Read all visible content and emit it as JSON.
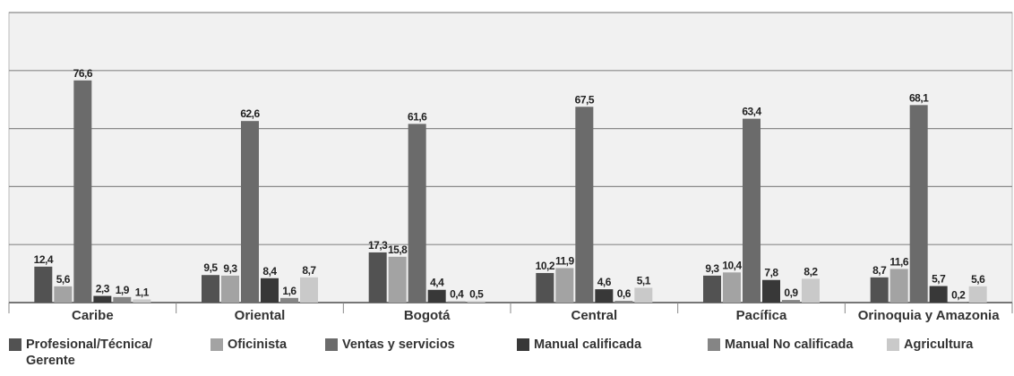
{
  "chart_data": {
    "type": "bar",
    "categories": [
      "Caribe",
      "Oriental",
      "Bogotá",
      "Central",
      "Pacífica",
      "Orinoquia y Amazonia"
    ],
    "ylim": [
      0,
      100
    ],
    "yticks": [
      0,
      20,
      40,
      60,
      80,
      100
    ],
    "grid": true,
    "series": [
      {
        "name": "Profesional/Técnica/ Gerente",
        "color": "#525252",
        "values": [
          12.4,
          9.5,
          17.3,
          10.2,
          9.3,
          8.7
        ],
        "value_labels": [
          "12,4",
          "9,5",
          "17,3",
          "10,2",
          "9,3",
          "8,7"
        ]
      },
      {
        "name": "Oficinista",
        "color": "#a3a3a3",
        "values": [
          5.6,
          9.3,
          15.8,
          11.9,
          10.4,
          11.6
        ],
        "value_labels": [
          "5,6",
          "9,3",
          "15,8",
          "11,9",
          "10,4",
          "11,6"
        ]
      },
      {
        "name": "Ventas y servicios",
        "color": "#6b6b6b",
        "values": [
          76.6,
          62.6,
          61.6,
          67.5,
          63.4,
          68.1
        ],
        "value_labels": [
          "76,6",
          "62,6",
          "61,6",
          "67,5",
          "63,4",
          "68,1"
        ]
      },
      {
        "name": "Manual calificada",
        "color": "#383838",
        "values": [
          2.3,
          8.4,
          4.4,
          4.6,
          7.8,
          5.7
        ],
        "value_labels": [
          "2,3",
          "8,4",
          "4,4",
          "4,6",
          "7,8",
          "5,7"
        ]
      },
      {
        "name": "Manual No calificada",
        "color": "#858585",
        "values": [
          1.9,
          1.6,
          0.4,
          0.6,
          0.9,
          0.2
        ],
        "value_labels": [
          "1,9",
          "1,6",
          "0,4",
          "0,6",
          "0,9",
          "0,2"
        ]
      },
      {
        "name": "Agricultura",
        "color": "#c9c9c9",
        "values": [
          1.1,
          8.7,
          0.5,
          5.1,
          8.2,
          5.6
        ],
        "value_labels": [
          "1,1",
          "8,7",
          "0,5",
          "5,1",
          "8,2",
          "5,6"
        ]
      }
    ]
  }
}
